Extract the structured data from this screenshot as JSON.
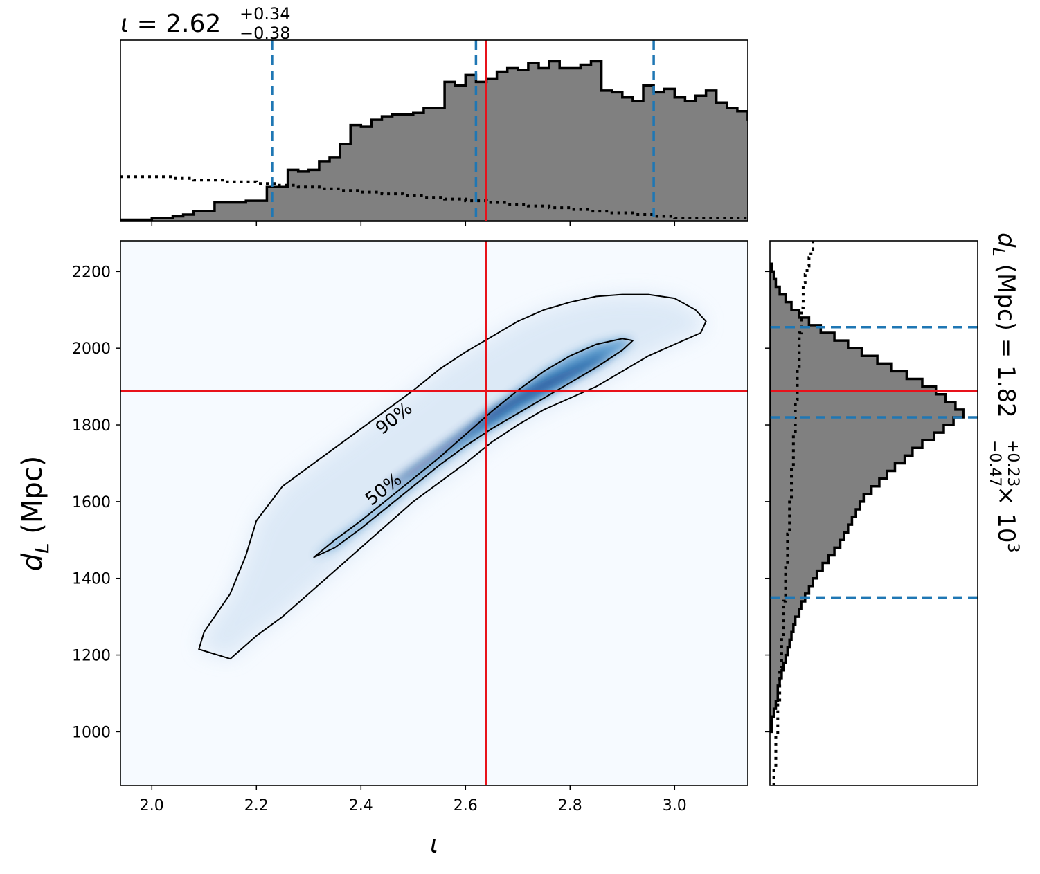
{
  "chart_data": [
    {
      "type": "area",
      "name": "top-marginal",
      "title_param": "ι",
      "title_median": "2.62",
      "title_plus": "+0.34",
      "title_minus": "−0.38",
      "xlim": [
        1.94,
        3.14
      ],
      "x_step": 0.02,
      "posterior_hist": [
        0.01,
        0.01,
        0.01,
        0.02,
        0.02,
        0.03,
        0.04,
        0.06,
        0.06,
        0.11,
        0.11,
        0.11,
        0.12,
        0.12,
        0.2,
        0.2,
        0.3,
        0.29,
        0.3,
        0.35,
        0.37,
        0.45,
        0.56,
        0.55,
        0.59,
        0.61,
        0.62,
        0.62,
        0.63,
        0.66,
        0.66,
        0.81,
        0.79,
        0.85,
        0.81,
        0.83,
        0.87,
        0.89,
        0.88,
        0.92,
        0.89,
        0.93,
        0.89,
        0.89,
        0.91,
        0.93,
        0.76,
        0.75,
        0.72,
        0.7,
        0.79,
        0.75,
        0.77,
        0.72,
        0.7,
        0.73,
        0.76,
        0.69,
        0.66,
        0.64,
        0.59,
        0.52,
        0.5,
        0.45,
        0.48,
        0.47,
        0.38,
        0.34,
        0.32,
        0.28,
        0.18,
        0.16,
        0.15,
        0.13,
        0.09,
        0.05,
        0.05,
        0.04,
        0.04,
        0.04,
        0.03,
        0.02,
        0.02,
        0.02,
        0.02,
        0.01,
        0.01,
        0.01,
        0.01,
        0.01,
        0.01,
        0.01,
        0.01
      ],
      "prior_hist": [
        0.26,
        0.26,
        0.26,
        0.26,
        0.26,
        0.25,
        0.25,
        0.24,
        0.24,
        0.24,
        0.23,
        0.23,
        0.23,
        0.22,
        0.22,
        0.21,
        0.21,
        0.2,
        0.2,
        0.19,
        0.19,
        0.18,
        0.18,
        0.17,
        0.17,
        0.16,
        0.16,
        0.15,
        0.15,
        0.14,
        0.14,
        0.13,
        0.13,
        0.12,
        0.12,
        0.11,
        0.11,
        0.1,
        0.1,
        0.09,
        0.09,
        0.08,
        0.08,
        0.07,
        0.07,
        0.06,
        0.06,
        0.05,
        0.05,
        0.04,
        0.04,
        0.03,
        0.03,
        0.02,
        0.02,
        0.02,
        0.02,
        0.02,
        0.02,
        0.02
      ],
      "credible_lines": [
        2.23,
        2.62,
        2.96
      ],
      "true_value": 2.64,
      "xticks": [
        "2.0",
        "2.2",
        "2.4",
        "2.6",
        "2.8",
        "3.0"
      ]
    },
    {
      "type": "heatmap",
      "name": "joint-posterior",
      "xlabel": "ι",
      "ylabel_sym": "d",
      "ylabel_sub": "L",
      "ylabel_unit": " (Mpc)",
      "xlim": [
        1.94,
        3.14
      ],
      "ylim": [
        860,
        2280
      ],
      "xticks": [
        "2.0",
        "2.2",
        "2.4",
        "2.6",
        "2.8",
        "3.0"
      ],
      "yticks": [
        "1000",
        "1200",
        "1400",
        "1600",
        "1800",
        "2000",
        "2200"
      ],
      "true_x": 2.64,
      "true_y": 1888,
      "contours": [
        {
          "label": "50%",
          "label_at": [
            2.45,
            1620
          ],
          "points": [
            [
              2.31,
              1455
            ],
            [
              2.35,
              1500
            ],
            [
              2.4,
              1550
            ],
            [
              2.45,
              1605
            ],
            [
              2.5,
              1660
            ],
            [
              2.55,
              1715
            ],
            [
              2.6,
              1775
            ],
            [
              2.65,
              1835
            ],
            [
              2.7,
              1890
            ],
            [
              2.75,
              1940
            ],
            [
              2.8,
              1980
            ],
            [
              2.85,
              2010
            ],
            [
              2.9,
              2025
            ],
            [
              2.92,
              2020
            ],
            [
              2.9,
              1995
            ],
            [
              2.85,
              1950
            ],
            [
              2.8,
              1910
            ],
            [
              2.75,
              1870
            ],
            [
              2.7,
              1830
            ],
            [
              2.65,
              1790
            ],
            [
              2.6,
              1745
            ],
            [
              2.55,
              1695
            ],
            [
              2.5,
              1640
            ],
            [
              2.45,
              1585
            ],
            [
              2.4,
              1530
            ],
            [
              2.35,
              1480
            ],
            [
              2.31,
              1455
            ]
          ]
        },
        {
          "label": "90%",
          "label_at": [
            2.47,
            1805
          ],
          "points": [
            [
              2.09,
              1215
            ],
            [
              2.15,
              1190
            ],
            [
              2.2,
              1250
            ],
            [
              2.25,
              1300
            ],
            [
              2.3,
              1360
            ],
            [
              2.35,
              1420
            ],
            [
              2.4,
              1480
            ],
            [
              2.45,
              1540
            ],
            [
              2.5,
              1600
            ],
            [
              2.55,
              1650
            ],
            [
              2.6,
              1700
            ],
            [
              2.65,
              1755
            ],
            [
              2.7,
              1800
            ],
            [
              2.75,
              1840
            ],
            [
              2.8,
              1870
            ],
            [
              2.85,
              1900
            ],
            [
              2.9,
              1940
            ],
            [
              2.95,
              1980
            ],
            [
              3.0,
              2010
            ],
            [
              3.05,
              2040
            ],
            [
              3.06,
              2070
            ],
            [
              3.04,
              2100
            ],
            [
              3.0,
              2130
            ],
            [
              2.95,
              2140
            ],
            [
              2.9,
              2140
            ],
            [
              2.85,
              2135
            ],
            [
              2.8,
              2120
            ],
            [
              2.75,
              2100
            ],
            [
              2.7,
              2070
            ],
            [
              2.65,
              2030
            ],
            [
              2.6,
              1990
            ],
            [
              2.55,
              1945
            ],
            [
              2.5,
              1890
            ],
            [
              2.45,
              1840
            ],
            [
              2.4,
              1790
            ],
            [
              2.35,
              1740
            ],
            [
              2.3,
              1690
            ],
            [
              2.25,
              1640
            ],
            [
              2.2,
              1550
            ],
            [
              2.18,
              1460
            ],
            [
              2.15,
              1360
            ],
            [
              2.1,
              1260
            ],
            [
              2.09,
              1215
            ]
          ]
        }
      ]
    },
    {
      "type": "area",
      "name": "right-marginal",
      "title_param": "d",
      "title_sub": "L",
      "title_unit": " (Mpc) = 1.82",
      "title_plus": "+0.23",
      "title_minus": "−0.47",
      "title_scale": " × 10",
      "title_exp": "3",
      "ylim": [
        860,
        2280
      ],
      "y_start": 1000,
      "y_step": 20,
      "posterior_hist": [
        0.01,
        0.01,
        0.02,
        0.03,
        0.04,
        0.04,
        0.05,
        0.06,
        0.07,
        0.08,
        0.09,
        0.1,
        0.11,
        0.12,
        0.13,
        0.15,
        0.16,
        0.18,
        0.2,
        0.22,
        0.24,
        0.27,
        0.3,
        0.33,
        0.36,
        0.38,
        0.4,
        0.42,
        0.44,
        0.46,
        0.48,
        0.52,
        0.56,
        0.6,
        0.64,
        0.69,
        0.73,
        0.78,
        0.84,
        0.89,
        0.94,
        0.99,
        0.95,
        0.9,
        0.85,
        0.78,
        0.7,
        0.62,
        0.55,
        0.47,
        0.4,
        0.33,
        0.26,
        0.2,
        0.15,
        0.11,
        0.08,
        0.05,
        0.03,
        0.02,
        0.01
      ],
      "prior_hist": [
        0.02,
        0.02,
        0.03,
        0.03,
        0.03,
        0.03,
        0.04,
        0.04,
        0.04,
        0.04,
        0.05,
        0.05,
        0.05,
        0.05,
        0.06,
        0.06,
        0.06,
        0.06,
        0.07,
        0.07,
        0.07,
        0.07,
        0.08,
        0.08,
        0.08,
        0.08,
        0.09,
        0.09,
        0.09,
        0.09,
        0.1,
        0.1,
        0.1,
        0.1,
        0.11,
        0.11,
        0.11,
        0.11,
        0.12,
        0.12,
        0.12,
        0.12,
        0.13,
        0.13,
        0.13,
        0.13,
        0.14,
        0.14,
        0.14,
        0.14,
        0.15,
        0.15,
        0.15,
        0.15,
        0.16,
        0.16,
        0.16,
        0.17,
        0.17,
        0.17,
        0.18,
        0.19,
        0.2,
        0.21,
        0.22
      ],
      "credible_lines": [
        1350,
        1820,
        2055
      ],
      "true_value": 1888
    }
  ],
  "colors": {
    "hist_fill": "#808080",
    "credible": "#1f77b4",
    "truth": "#e8121b",
    "contour": "#000000"
  }
}
